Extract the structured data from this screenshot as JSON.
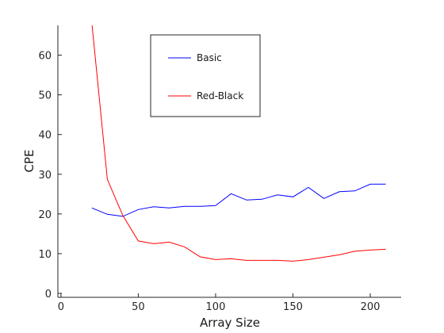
{
  "chart_data": {
    "type": "line",
    "title": "",
    "xlabel": "Array Size",
    "ylabel": "CPE",
    "xlim": [
      -2,
      220
    ],
    "ylim": [
      -1,
      67.5
    ],
    "xticks": [
      0,
      50,
      100,
      150,
      200
    ],
    "yticks": [
      0,
      10,
      20,
      30,
      40,
      50,
      60
    ],
    "grid": false,
    "legend_position": "top-center",
    "series": [
      {
        "name": "Basic",
        "color": "#0000ff",
        "x": [
          20,
          30,
          40,
          50,
          60,
          70,
          80,
          90,
          100,
          110,
          120,
          130,
          140,
          150,
          160,
          170,
          180,
          190,
          200,
          210
        ],
        "y": [
          21.5,
          19.9,
          19.4,
          21.1,
          21.8,
          21.5,
          21.9,
          21.9,
          22.1,
          25.1,
          23.5,
          23.7,
          24.8,
          24.3,
          26.7,
          23.9,
          25.6,
          25.8,
          27.5,
          27.5
        ]
      },
      {
        "name": "Red-Black",
        "color": "#ff0000",
        "x": [
          20,
          30,
          40,
          50,
          60,
          70,
          80,
          90,
          100,
          110,
          120,
          130,
          140,
          150,
          160,
          170,
          180,
          190,
          200,
          210
        ],
        "y": [
          68,
          28.7,
          19.6,
          13.2,
          12.5,
          12.9,
          11.7,
          9.2,
          8.5,
          8.7,
          8.3,
          8.3,
          8.3,
          8.1,
          8.5,
          9.1,
          9.7,
          10.6,
          10.9,
          11.1
        ]
      }
    ]
  }
}
